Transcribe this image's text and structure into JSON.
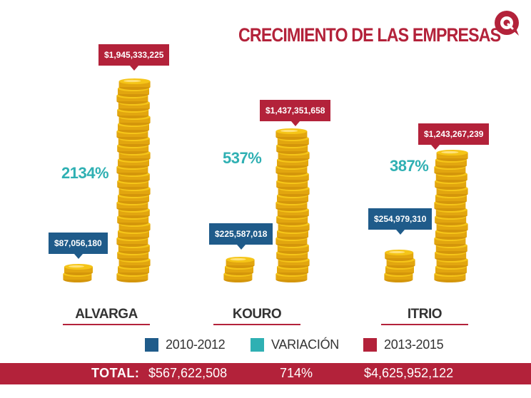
{
  "title": "CRECIMIENTO DE LAS EMPRESAS",
  "icon": "chat-bubble-q-logo",
  "colors": {
    "brand_red": "#b3223a",
    "series_blue": "#1f5b8a",
    "series_teal": "#2fb0b3",
    "coin_gold": "#f5c518"
  },
  "chart_data": {
    "type": "bar",
    "categories": [
      "ALVARGA",
      "KOURO",
      "ITRIO"
    ],
    "series": [
      {
        "name": "2010-2012",
        "values": [
          87056180,
          225587018,
          254979310
        ]
      },
      {
        "name": "VARIACIÓN",
        "values": [
          "2134%",
          "537%",
          "387%"
        ]
      },
      {
        "name": "2013-2015",
        "values": [
          1945333225,
          1437351658,
          1243267239
        ]
      }
    ],
    "data_labels": {
      "2010-2012": [
        "$87,056,180",
        "$225,587,018",
        "$254,979,310"
      ],
      "variacion": [
        "2134%",
        "537%",
        "387%"
      ],
      "2013-2015": [
        "$1,945,333,225",
        "$1,437,351,658",
        "$1,243,267,239"
      ]
    },
    "mark_style": "coin stacks",
    "legend_position": "bottom"
  },
  "legend": [
    {
      "label": "2010-2012",
      "color": "#1f5b8a"
    },
    {
      "label": "VARIACIÓN",
      "color": "#2fb0b3"
    },
    {
      "label": "2013-2015",
      "color": "#b3223a"
    }
  ],
  "totals": {
    "label": "TOTAL:",
    "period1": "$567,622,508",
    "variation": "714%",
    "period2": "$4,625,952,122"
  }
}
